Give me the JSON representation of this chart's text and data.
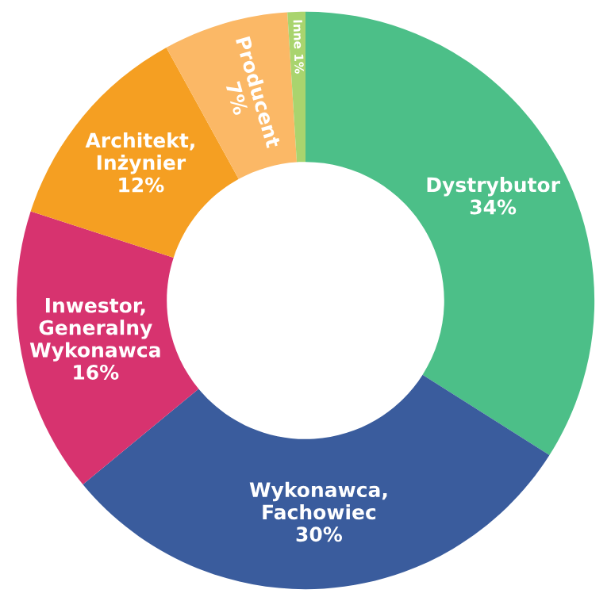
{
  "chart_data": {
    "type": "donut",
    "categories": [
      "Dystrybutor",
      "Wykonawca,\nFachowiec",
      "Inwestor,\nGeneralny\nWykonawca",
      "Architekt,\nInżynier",
      "Producent",
      "Inne"
    ],
    "values": [
      34,
      30,
      16,
      12,
      7,
      1
    ],
    "value_labels": [
      "34%",
      "30%",
      "16%",
      "12%",
      "7%",
      "1%"
    ],
    "colors": [
      "#4cbf88",
      "#3a5c9d",
      "#d7336f",
      "#f59f22",
      "#fbb866",
      "#a9d46e"
    ]
  }
}
